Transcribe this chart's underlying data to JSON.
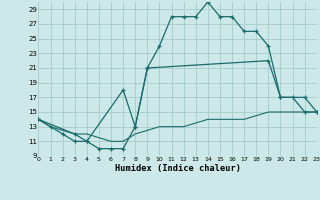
{
  "xlabel": "Humidex (Indice chaleur)",
  "bg_color": "#cce8e8",
  "grid_color": "#aacece",
  "line_color": "#1a6b6b",
  "xlim": [
    0,
    23
  ],
  "ylim": [
    9,
    30
  ],
  "yticks": [
    9,
    11,
    13,
    15,
    17,
    19,
    21,
    23,
    25,
    27,
    29
  ],
  "xticks": [
    0,
    1,
    2,
    3,
    4,
    5,
    6,
    7,
    8,
    9,
    10,
    11,
    12,
    13,
    14,
    15,
    16,
    17,
    18,
    19,
    20,
    21,
    22,
    23
  ],
  "line1_x": [
    0,
    1,
    2,
    3,
    4,
    5,
    6,
    7,
    8,
    9,
    10,
    11,
    12,
    13,
    14,
    15,
    16,
    17,
    18,
    19,
    20,
    21,
    22,
    23
  ],
  "line1_y": [
    14,
    13,
    12,
    11,
    11,
    10,
    10,
    10,
    13,
    21,
    24,
    28,
    28,
    28,
    30,
    28,
    28,
    26,
    26,
    24,
    17,
    17,
    15,
    15
  ],
  "line2_x": [
    0,
    3,
    4,
    7,
    8,
    9,
    19,
    20,
    22,
    23
  ],
  "line2_y": [
    14,
    12,
    11,
    18,
    13,
    21,
    22,
    17,
    17,
    15
  ],
  "line3_x": [
    0,
    1,
    2,
    3,
    4,
    5,
    6,
    7,
    8,
    9,
    10,
    11,
    12,
    13,
    14,
    15,
    16,
    17,
    18,
    19,
    20,
    21,
    22,
    23
  ],
  "line3_y": [
    14,
    13,
    12.5,
    12,
    12,
    11.5,
    11,
    11,
    12,
    12.5,
    13,
    13,
    13,
    13.5,
    14,
    14,
    14,
    14,
    14.5,
    15,
    15,
    15,
    15,
    15
  ]
}
